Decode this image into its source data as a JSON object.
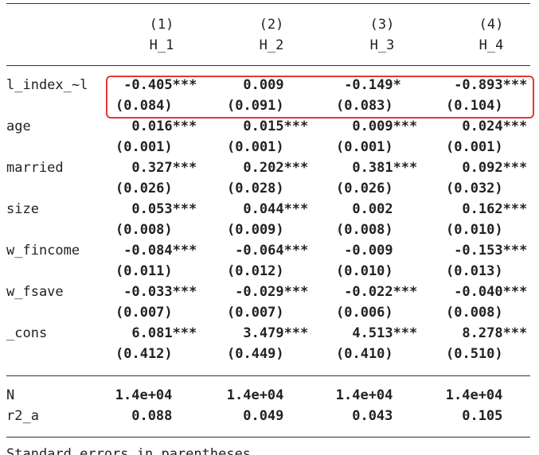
{
  "table": {
    "columns": [
      {
        "number": "(1)",
        "name": "H_1"
      },
      {
        "number": "(2)",
        "name": "H_2"
      },
      {
        "number": "(3)",
        "name": "H_3"
      },
      {
        "number": "(4)",
        "name": "H_4"
      }
    ],
    "rows": [
      {
        "label": "l_index_~l",
        "coefs": [
          "-0.405***",
          "0.009",
          "-0.149*",
          "-0.893***"
        ],
        "ses": [
          "(0.084)",
          "(0.091)",
          "(0.083)",
          "(0.104)"
        ]
      },
      {
        "label": "age",
        "coefs": [
          "0.016***",
          "0.015***",
          "0.009***",
          "0.024***"
        ],
        "ses": [
          "(0.001)",
          "(0.001)",
          "(0.001)",
          "(0.001)"
        ]
      },
      {
        "label": "married",
        "coefs": [
          "0.327***",
          "0.202***",
          "0.381***",
          "0.092***"
        ],
        "ses": [
          "(0.026)",
          "(0.028)",
          "(0.026)",
          "(0.032)"
        ]
      },
      {
        "label": "size",
        "coefs": [
          "0.053***",
          "0.044***",
          "0.002",
          "0.162***"
        ],
        "ses": [
          "(0.008)",
          "(0.009)",
          "(0.008)",
          "(0.010)"
        ]
      },
      {
        "label": "w_fincome",
        "coefs": [
          "-0.084***",
          "-0.064***",
          "-0.009",
          "-0.153***"
        ],
        "ses": [
          "(0.011)",
          "(0.012)",
          "(0.010)",
          "(0.013)"
        ]
      },
      {
        "label": "w_fsave",
        "coefs": [
          "-0.033***",
          "-0.029***",
          "-0.022***",
          "-0.040***"
        ],
        "ses": [
          "(0.007)",
          "(0.007)",
          "(0.006)",
          "(0.008)"
        ]
      },
      {
        "label": "_cons",
        "coefs": [
          "6.081***",
          "3.479***",
          "4.513***",
          "8.278***"
        ],
        "ses": [
          "(0.412)",
          "(0.449)",
          "(0.410)",
          "(0.510)"
        ]
      }
    ],
    "stats": [
      {
        "label": "N",
        "values": [
          "1.4e+04",
          "1.4e+04",
          "1.4e+04",
          "1.4e+04"
        ]
      },
      {
        "label": "r2_a",
        "values": [
          "0.088",
          "0.049",
          "0.043",
          "0.105"
        ]
      }
    ],
    "footnote": "Standard errors in parentheses"
  }
}
